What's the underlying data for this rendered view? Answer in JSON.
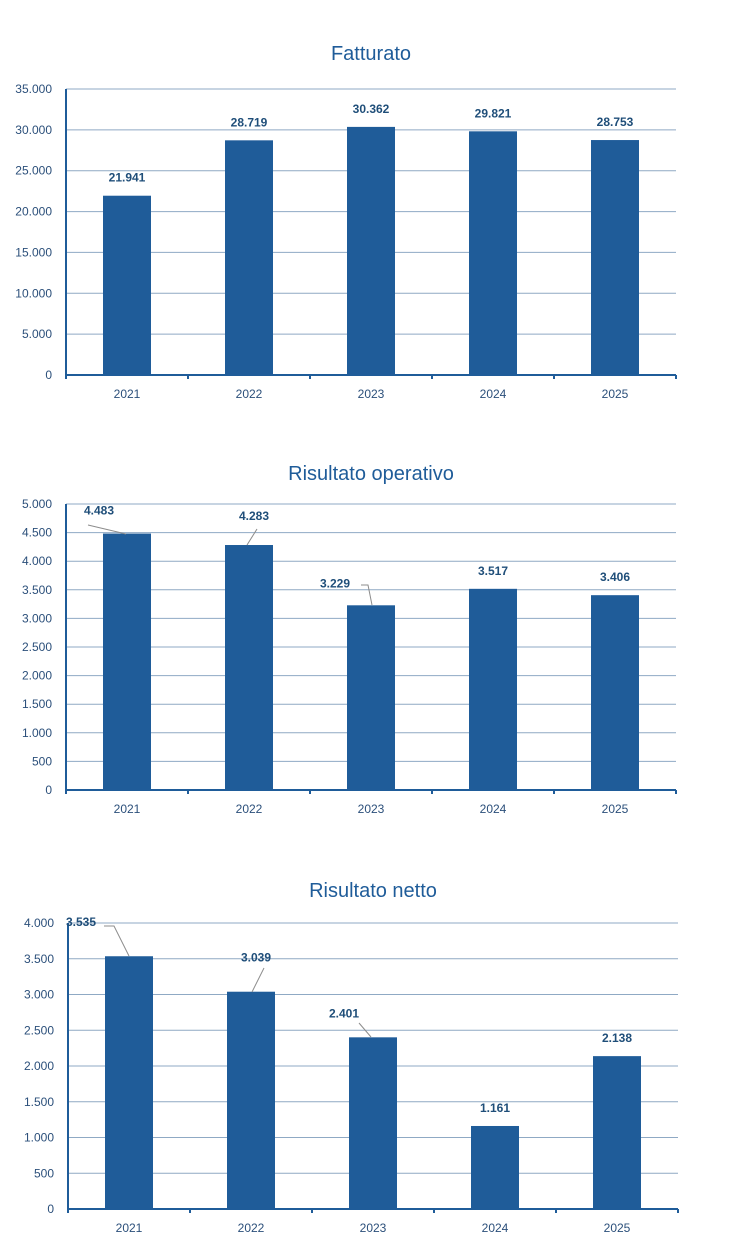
{
  "chart_data": [
    {
      "type": "bar",
      "title": "Fatturato",
      "categories": [
        "2021",
        "2022",
        "2023",
        "2024",
        "2025"
      ],
      "values": [
        21941,
        28719,
        30362,
        29821,
        28753
      ],
      "value_labels": [
        "21.941",
        "28.719",
        "30.362",
        "29.821",
        "28.753"
      ],
      "yticks": [
        0,
        5000,
        10000,
        15000,
        20000,
        25000,
        30000,
        35000
      ],
      "ytick_labels": [
        "0",
        "5.000",
        "10.000",
        "15.000",
        "20.000",
        "25.000",
        "30.000",
        "35.000"
      ],
      "ylim": [
        0,
        35000
      ],
      "grid": true,
      "color": "#1F5C99"
    },
    {
      "type": "bar",
      "title": "Risultato operativo",
      "categories": [
        "2021",
        "2022",
        "2023",
        "2024",
        "2025"
      ],
      "values": [
        4483,
        4283,
        3229,
        3517,
        3406
      ],
      "value_labels": [
        "4.483",
        "4.283",
        "3.229",
        "3.517",
        "3.406"
      ],
      "yticks": [
        0,
        500,
        1000,
        1500,
        2000,
        2500,
        3000,
        3500,
        4000,
        4500,
        5000
      ],
      "ytick_labels": [
        "0",
        "500",
        "1.000",
        "1.500",
        "2.000",
        "2.500",
        "3.000",
        "3.500",
        "4.000",
        "4.500",
        "5.000"
      ],
      "ylim": [
        0,
        5000
      ],
      "grid": true,
      "color": "#1F5C99"
    },
    {
      "type": "bar",
      "title": "Risultato netto",
      "categories": [
        "2021",
        "2022",
        "2023",
        "2024",
        "2025"
      ],
      "values": [
        3535,
        3039,
        2401,
        1161,
        2138
      ],
      "value_labels": [
        "3.535",
        "3.039",
        "2.401",
        "1.161",
        "2.138"
      ],
      "yticks": [
        0,
        500,
        1000,
        1500,
        2000,
        2500,
        3000,
        3500,
        4000
      ],
      "ytick_labels": [
        "0",
        "500",
        "1.000",
        "1.500",
        "2.000",
        "2.500",
        "3.000",
        "3.500",
        "4.000"
      ],
      "ylim": [
        0,
        4000
      ],
      "grid": true,
      "color": "#1F5C99"
    }
  ]
}
